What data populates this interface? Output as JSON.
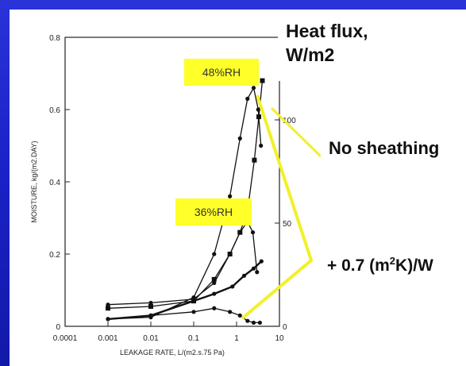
{
  "chart_data": {
    "type": "line",
    "xscale": "log",
    "xlim": [
      0.0001,
      10
    ],
    "ylim": [
      0,
      0.8
    ],
    "y2lim": [
      0,
      140
    ],
    "xlabel": "LEAKAGE RATE, L/(m2.s.75 Pa)",
    "ylabel": "MOISTURE, kg/(m2.DAY)",
    "x_ticks": [
      "0.0001",
      "0.001",
      "0.01",
      "0.1",
      "1",
      "10"
    ],
    "x_tick_values": [
      0.0001,
      0.001,
      0.01,
      0.1,
      1,
      10
    ],
    "y_ticks": [
      "0",
      "0.2",
      "0.4",
      "0.6",
      "0.8"
    ],
    "y_tick_values": [
      0,
      0.2,
      0.4,
      0.6,
      0.8
    ],
    "y2_ticks": [
      "0",
      "50",
      "100"
    ],
    "y2_tick_values": [
      0,
      50,
      100
    ],
    "grid": false,
    "series": [
      {
        "x": [
          0.001,
          0.01,
          0.1,
          0.3,
          0.7,
          1.2,
          1.8,
          2.5,
          3.2,
          3.7
        ],
        "y": [
          0.02,
          0.025,
          0.08,
          0.2,
          0.36,
          0.52,
          0.63,
          0.66,
          0.6,
          0.5
        ],
        "marker": "circle"
      },
      {
        "x": [
          0.001,
          0.01,
          0.1,
          0.3,
          0.7,
          1.2,
          1.8,
          2.6,
          3.3,
          4.0
        ],
        "y": [
          0.05,
          0.055,
          0.07,
          0.13,
          0.2,
          0.26,
          0.32,
          0.46,
          0.58,
          0.68
        ],
        "marker": "square"
      },
      {
        "x": [
          0.001,
          0.01,
          0.1,
          0.3,
          0.7,
          1.2,
          1.8,
          2.4,
          3.0
        ],
        "y": [
          0.06,
          0.065,
          0.075,
          0.12,
          0.2,
          0.26,
          0.29,
          0.26,
          0.15
        ],
        "marker": "circle"
      },
      {
        "x": [
          0.001,
          0.01,
          0.1,
          0.3,
          0.8,
          1.5,
          2.5,
          3.8
        ],
        "y": [
          0.02,
          0.03,
          0.07,
          0.09,
          0.11,
          0.14,
          0.16,
          0.18
        ],
        "marker": "circle"
      },
      {
        "x": [
          0.001,
          0.01,
          0.1,
          0.3,
          0.7,
          1.2,
          1.8,
          2.5,
          3.5
        ],
        "y": [
          0.02,
          0.03,
          0.04,
          0.05,
          0.04,
          0.03,
          0.015,
          0.01,
          0.01
        ],
        "marker": "circle"
      }
    ]
  },
  "annotations": {
    "heat_flux_line1": "Heat flux,",
    "heat_flux_line2": "W/m2",
    "no_sheathing": "No sheathing",
    "r_value_prefix": "+ 0.7 (m",
    "r_value_sup": "2",
    "r_value_suffix": "K)/W",
    "rh_high": "48%RH",
    "rh_low": "36%RH"
  },
  "colors": {
    "background": "#1a22c8",
    "highlight": "#ffff2a",
    "pointer_line": "#f2f02a",
    "panel": "#ffffff",
    "curve": "#111111"
  }
}
